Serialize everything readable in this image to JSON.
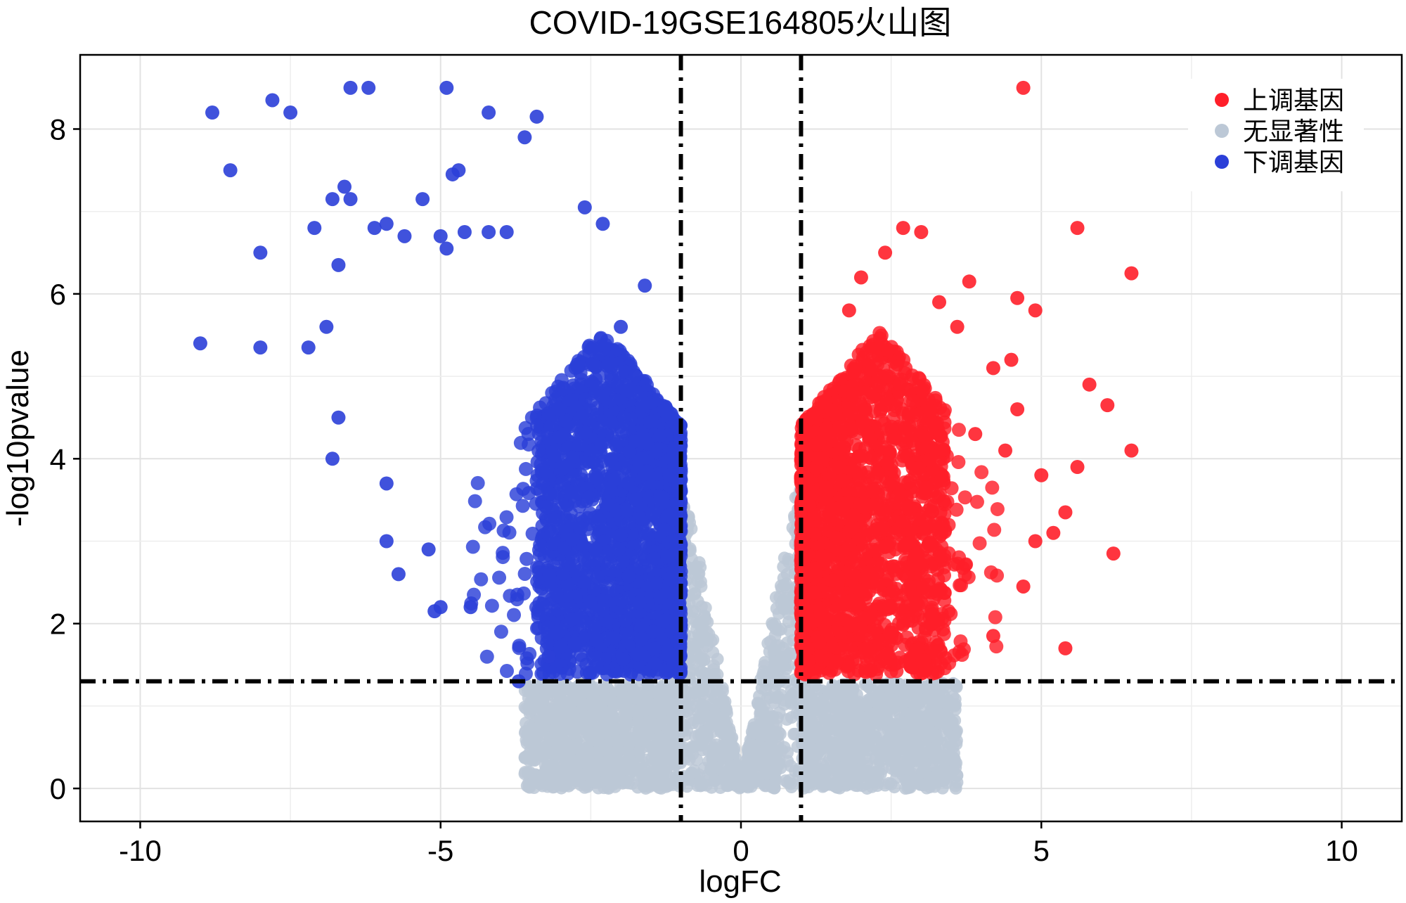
{
  "chart_data": {
    "type": "scatter",
    "title": "COVID-19GSE164805火山图",
    "xlabel": "logFC",
    "ylabel": "-log10pvalue",
    "xlim": [
      -11,
      11
    ],
    "ylim": [
      -0.4,
      8.9
    ],
    "xticks": [
      -10,
      -5,
      0,
      5,
      10
    ],
    "xtick_labels": [
      "-10",
      "-5",
      "0",
      "5",
      "10"
    ],
    "yticks": [
      0,
      2,
      4,
      6,
      8
    ],
    "ytick_labels": [
      "0",
      "2",
      "4",
      "6",
      "8"
    ],
    "grid": true,
    "thresholds": {
      "logFC": [
        -1,
        1
      ],
      "neg_log10_pvalue": 1.3
    },
    "legend_position": "top-right",
    "series": [
      {
        "name": "上调基因",
        "color": "#ff1f2a",
        "points": [
          [
            4.7,
            8.5
          ],
          [
            5.6,
            6.8
          ],
          [
            6.5,
            6.25
          ],
          [
            2.7,
            6.8
          ],
          [
            3.0,
            6.75
          ],
          [
            2.4,
            6.5
          ],
          [
            4.6,
            5.95
          ],
          [
            4.9,
            5.8
          ],
          [
            3.8,
            6.15
          ],
          [
            5.8,
            4.9
          ],
          [
            6.1,
            4.65
          ],
          [
            6.5,
            4.1
          ],
          [
            4.6,
            4.6
          ],
          [
            5.6,
            3.9
          ],
          [
            6.2,
            2.85
          ],
          [
            5.4,
            1.7
          ],
          [
            4.2,
            1.85
          ],
          [
            4.7,
            2.45
          ],
          [
            5.4,
            3.35
          ],
          [
            5.0,
            3.8
          ],
          [
            4.5,
            5.2
          ],
          [
            4.2,
            5.1
          ],
          [
            3.6,
            5.6
          ],
          [
            3.3,
            5.9
          ],
          [
            5.2,
            3.1
          ],
          [
            4.9,
            3.0
          ],
          [
            2.0,
            6.2
          ],
          [
            1.8,
            5.8
          ],
          [
            3.9,
            4.3
          ],
          [
            4.4,
            4.1
          ]
        ]
      },
      {
        "name": "无显著性",
        "color": "#bcc8d6",
        "points": []
      },
      {
        "name": "下调基因",
        "color": "#2b3fd8",
        "points": [
          [
            -8.8,
            8.2
          ],
          [
            -7.8,
            8.35
          ],
          [
            -7.5,
            8.2
          ],
          [
            -6.5,
            8.5
          ],
          [
            -6.2,
            8.5
          ],
          [
            -4.9,
            8.5
          ],
          [
            -4.2,
            8.2
          ],
          [
            -3.4,
            8.15
          ],
          [
            -3.6,
            7.9
          ],
          [
            -8.5,
            7.5
          ],
          [
            -4.7,
            7.5
          ],
          [
            -4.8,
            7.45
          ],
          [
            -6.8,
            7.15
          ],
          [
            -6.6,
            7.3
          ],
          [
            -6.5,
            7.15
          ],
          [
            -5.3,
            7.15
          ],
          [
            -2.6,
            7.05
          ],
          [
            -7.1,
            6.8
          ],
          [
            -6.1,
            6.8
          ],
          [
            -5.9,
            6.85
          ],
          [
            -5.0,
            6.7
          ],
          [
            -4.6,
            6.75
          ],
          [
            -4.2,
            6.75
          ],
          [
            -3.9,
            6.75
          ],
          [
            -2.3,
            6.85
          ],
          [
            -8.0,
            6.5
          ],
          [
            -6.7,
            6.35
          ],
          [
            -5.6,
            6.7
          ],
          [
            -4.9,
            6.55
          ],
          [
            -9.0,
            5.4
          ],
          [
            -8.0,
            5.35
          ],
          [
            -7.2,
            5.35
          ],
          [
            -6.9,
            5.6
          ],
          [
            -6.7,
            4.5
          ],
          [
            -6.8,
            4.0
          ],
          [
            -5.9,
            3.7
          ],
          [
            -5.9,
            3.0
          ],
          [
            -5.7,
            2.6
          ],
          [
            -5.2,
            2.9
          ],
          [
            -5.0,
            2.2
          ],
          [
            -5.1,
            2.15
          ],
          [
            -4.5,
            2.2
          ],
          [
            -3.7,
            1.3
          ],
          [
            -3.2,
            1.6
          ],
          [
            -1.6,
            6.1
          ],
          [
            -2.0,
            5.6
          ]
        ]
      }
    ]
  }
}
